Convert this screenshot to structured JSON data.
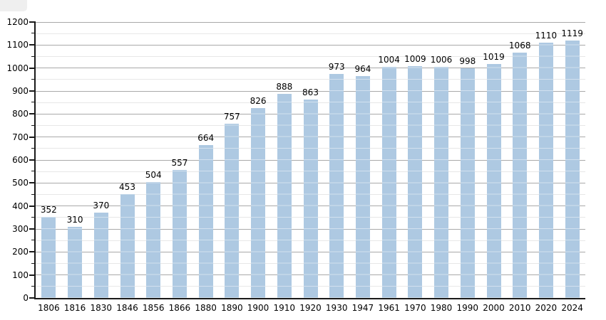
{
  "chart_data": {
    "type": "bar",
    "title": "",
    "xlabel": "",
    "ylabel": "",
    "categories": [
      "1806",
      "1816",
      "1830",
      "1846",
      "1856",
      "1866",
      "1880",
      "1890",
      "1900",
      "1910",
      "1920",
      "1930",
      "1947",
      "1961",
      "1970",
      "1980",
      "1990",
      "2000",
      "2010",
      "2020",
      "2024"
    ],
    "values": [
      352,
      310,
      370,
      453,
      504,
      557,
      664,
      757,
      826,
      888,
      863,
      973,
      964,
      1004,
      1009,
      1006,
      998,
      1019,
      1068,
      1110,
      1119
    ],
    "bar_value_labels": [
      "352",
      "310",
      "370",
      "453",
      "504",
      "557",
      "664",
      "757",
      "826",
      "888",
      "863",
      "973",
      "964",
      "1004",
      "1009",
      "1006",
      "998",
      "1019",
      "1068",
      "1110",
      "1119"
    ],
    "ylim": [
      0,
      1200
    ],
    "ytick_step": 100,
    "yminor_step": 50,
    "ytick_labels": [
      "0",
      "100",
      "200",
      "300",
      "400",
      "500",
      "600",
      "700",
      "800",
      "900",
      "1000",
      "1100",
      "1200"
    ],
    "grid": true,
    "legend": false,
    "colors": {
      "bar_fill": "#aec9e2",
      "major_gridline": "#a9a9a9",
      "minor_gridline": "#e7e7e7",
      "axis": "#1a1a1a",
      "label_text": "#000000",
      "background": "#ffffff",
      "corner_artifact": "#efefef"
    }
  }
}
